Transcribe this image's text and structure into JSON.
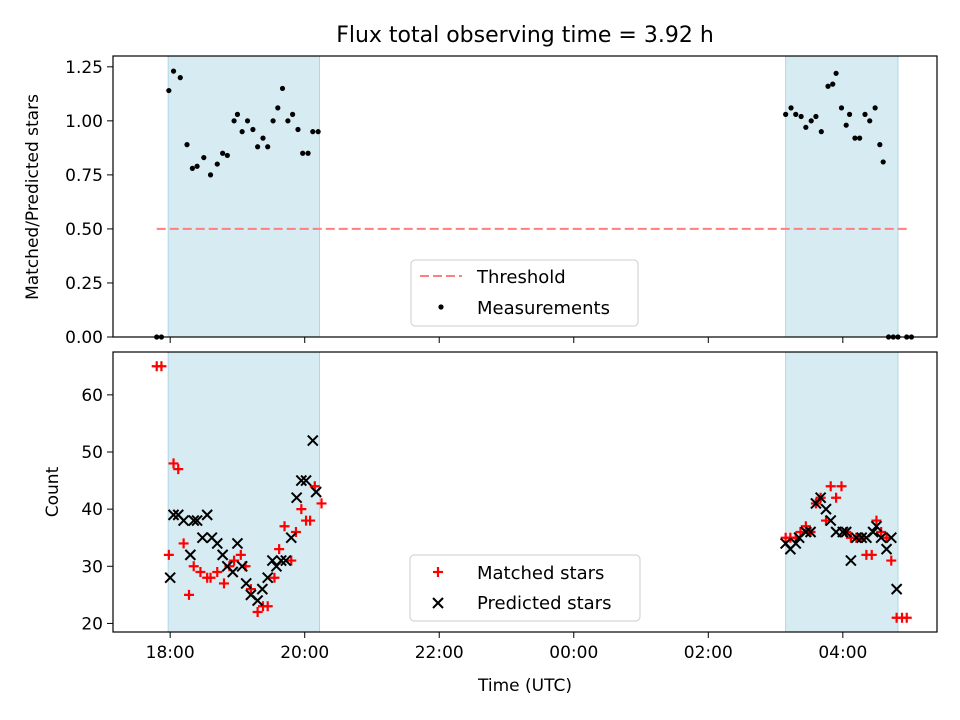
{
  "chart_data": [
    {
      "type": "scatter",
      "title": "Flux total observing time = 3.92 h",
      "xlabel": "",
      "ylabel": "Matched/Predicted stars",
      "xlim": [
        -0.85,
        11.4
      ],
      "ylim": [
        0.0,
        1.3
      ],
      "yticks": [
        0.0,
        0.25,
        0.5,
        0.75,
        1.0,
        1.25
      ],
      "ytick_labels": [
        "0.00",
        "0.25",
        "0.50",
        "0.75",
        "1.00",
        "1.25"
      ],
      "shaded_spans": [
        [
          -0.03,
          2.22
        ],
        [
          9.15,
          10.82
        ]
      ],
      "threshold": {
        "label": "Threshold",
        "value": 0.5,
        "x_range": [
          -0.2,
          10.98
        ],
        "color": "#ff7f7f"
      },
      "series": [
        {
          "name": "Measurements",
          "color": "#000000",
          "x": [
            -0.2,
            -0.13,
            -0.02,
            0.05,
            0.15,
            0.25,
            0.33,
            0.4,
            0.5,
            0.6,
            0.7,
            0.78,
            0.85,
            0.95,
            1.0,
            1.07,
            1.15,
            1.23,
            1.3,
            1.38,
            1.45,
            1.53,
            1.6,
            1.67,
            1.75,
            1.82,
            1.9,
            1.97,
            2.05,
            2.12,
            2.2,
            9.15,
            9.23,
            9.3,
            9.38,
            9.45,
            9.53,
            9.6,
            9.68,
            9.78,
            9.85,
            9.9,
            9.98,
            10.05,
            10.1,
            10.18,
            10.25,
            10.33,
            10.4,
            10.48,
            10.55,
            10.6,
            10.68,
            10.75,
            10.82,
            10.95,
            11.02
          ],
          "y": [
            0.0,
            0.0,
            1.14,
            1.23,
            1.2,
            0.89,
            0.78,
            0.79,
            0.83,
            0.75,
            0.8,
            0.85,
            0.84,
            1.0,
            1.03,
            0.95,
            1.0,
            0.96,
            0.88,
            0.92,
            0.88,
            1.0,
            1.06,
            1.15,
            1.0,
            1.03,
            0.96,
            0.85,
            0.85,
            0.95,
            0.95,
            1.03,
            1.06,
            1.03,
            1.02,
            0.97,
            1.0,
            1.02,
            0.95,
            1.16,
            1.17,
            1.22,
            1.06,
            0.98,
            1.03,
            0.92,
            0.92,
            1.03,
            1.0,
            1.06,
            0.89,
            0.81,
            0.0,
            0.0,
            0.0,
            0.0,
            0.0
          ]
        }
      ],
      "legend": {
        "placement": "lower-center",
        "entries": [
          "Threshold",
          "Measurements"
        ]
      }
    },
    {
      "type": "scatter",
      "title": "",
      "xlabel": "Time (UTC)",
      "ylabel": "Count",
      "xlim": [
        -0.85,
        11.4
      ],
      "ylim": [
        18.5,
        67.5
      ],
      "yticks": [
        20,
        30,
        40,
        50,
        60
      ],
      "ytick_labels": [
        "20",
        "30",
        "40",
        "50",
        "60"
      ],
      "xticks": [
        0,
        2,
        4,
        6,
        8,
        10
      ],
      "xtick_labels": [
        "18:00",
        "20:00",
        "22:00",
        "00:00",
        "02:00",
        "04:00"
      ],
      "shaded_spans": [
        [
          -0.03,
          2.22
        ],
        [
          9.15,
          10.82
        ]
      ],
      "series": [
        {
          "name": "Matched stars",
          "marker": "+",
          "color": "#ff0000",
          "x": [
            -0.2,
            -0.13,
            -0.02,
            0.05,
            0.12,
            0.2,
            0.28,
            0.35,
            0.45,
            0.55,
            0.6,
            0.7,
            0.8,
            0.88,
            0.95,
            1.05,
            1.12,
            1.2,
            1.3,
            1.38,
            1.45,
            1.55,
            1.62,
            1.7,
            1.8,
            1.87,
            1.95,
            2.02,
            2.08,
            2.15,
            2.25,
            9.15,
            9.22,
            9.3,
            9.37,
            9.45,
            9.52,
            9.6,
            9.67,
            9.75,
            9.82,
            9.9,
            9.98,
            10.05,
            10.12,
            10.2,
            10.28,
            10.35,
            10.43,
            10.5,
            10.57,
            10.65,
            10.72,
            10.8,
            10.88,
            10.95
          ],
          "y": [
            65,
            65,
            32,
            48,
            47,
            34,
            25,
            30,
            29,
            28,
            28,
            29,
            27,
            30,
            31,
            32,
            30,
            26,
            22,
            23,
            23,
            28,
            33,
            37,
            31,
            36,
            40,
            38,
            38,
            44,
            41,
            35,
            35,
            35,
            36,
            37,
            36,
            41,
            42,
            38,
            44,
            42,
            44,
            36,
            35,
            35,
            35,
            32,
            32,
            38,
            36,
            35,
            31,
            21,
            21,
            21
          ]
        },
        {
          "name": "Predicted stars",
          "marker": "x",
          "color": "#000000",
          "x": [
            -0.0,
            0.05,
            0.12,
            0.2,
            0.3,
            0.35,
            0.4,
            0.48,
            0.55,
            0.62,
            0.7,
            0.78,
            0.85,
            0.93,
            1.0,
            1.07,
            1.13,
            1.2,
            1.3,
            1.37,
            1.45,
            1.52,
            1.58,
            1.65,
            1.72,
            1.8,
            1.88,
            1.95,
            2.02,
            2.12,
            2.17,
            9.15,
            9.22,
            9.3,
            9.35,
            9.45,
            9.52,
            9.6,
            9.67,
            9.75,
            9.82,
            9.9,
            10.0,
            10.05,
            10.12,
            10.2,
            10.28,
            10.35,
            10.45,
            10.5,
            10.57,
            10.65,
            10.72,
            10.8
          ],
          "y": [
            28,
            39,
            39,
            38,
            32,
            38,
            38,
            35,
            39,
            35,
            34,
            32,
            30,
            29,
            34,
            30,
            27,
            25,
            24,
            26,
            28,
            31,
            30,
            31,
            31,
            35,
            42,
            45,
            45,
            52,
            43,
            34,
            33,
            34,
            35,
            36,
            36,
            41,
            42,
            40,
            38,
            36,
            36,
            36,
            31,
            35,
            35,
            35,
            36,
            37,
            35,
            33,
            35,
            26
          ]
        }
      ],
      "legend": {
        "placement": "lower-center",
        "entries": [
          "Matched stars",
          "Predicted stars"
        ]
      }
    }
  ]
}
